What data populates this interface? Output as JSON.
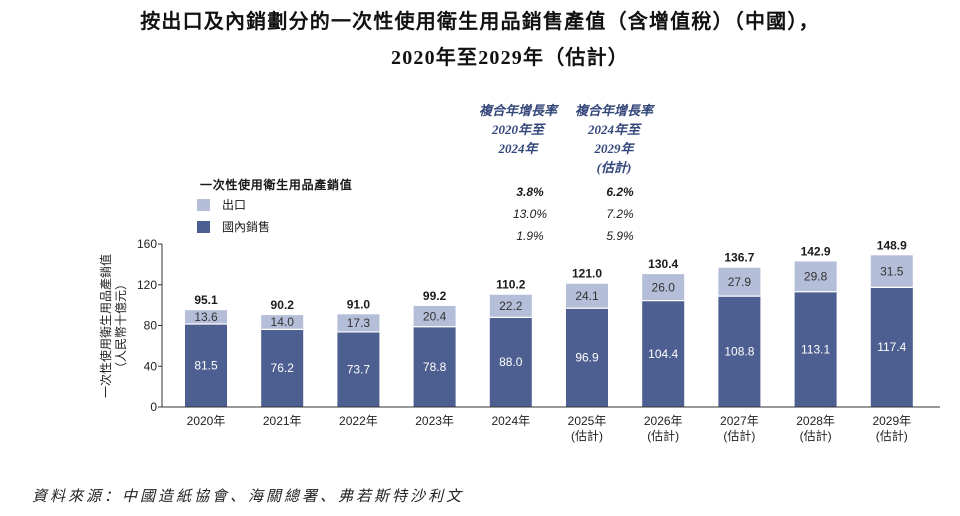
{
  "chart_data": {
    "type": "bar",
    "stacked": true,
    "title": [
      "按出口及內銷劃分的一次性使用衛生用品銷售產值（含增值稅）（中國），",
      "2020年至2029年（估計）"
    ],
    "legend_title": "一次性使用衛生用品產銷值",
    "legend_position": "top-left",
    "categories": [
      "2020年",
      "2021年",
      "2022年",
      "2023年",
      "2024年",
      "2025年",
      "2026年",
      "2027年",
      "2028年",
      "2029年"
    ],
    "category_notes": [
      "",
      "",
      "",
      "",
      "",
      "(估計)",
      "(估計)",
      "(估計)",
      "(估計)",
      "(估計)"
    ],
    "series": [
      {
        "name": "國內銷售",
        "color": "#4d5e90",
        "values": [
          81.5,
          76.2,
          73.7,
          78.8,
          88.0,
          96.9,
          104.4,
          108.8,
          113.1,
          117.4
        ]
      },
      {
        "name": "出口",
        "color": "#b4bed8",
        "values": [
          13.6,
          14.0,
          17.3,
          20.4,
          22.2,
          24.1,
          26.0,
          27.9,
          29.8,
          31.5
        ]
      }
    ],
    "totals": [
      95.1,
      90.2,
      91.0,
      99.2,
      110.2,
      121.0,
      130.4,
      136.7,
      142.9,
      148.9
    ],
    "ylabel": [
      "一次性使用衛生用品產銷值",
      "（人民幣十億元）"
    ],
    "ylim": [
      0,
      160
    ],
    "yticks": [
      0,
      40,
      80,
      120,
      160
    ],
    "grid": false
  },
  "cagr": {
    "headers": [
      [
        "複合年增長率",
        "2020年至",
        "2024年"
      ],
      [
        "複合年增長率",
        "2024年至",
        "2029年",
        "(估計)"
      ]
    ],
    "total": [
      "3.8%",
      "6.2%"
    ],
    "export": [
      "13.0%",
      "7.2%"
    ],
    "domestic": [
      "1.9%",
      "5.9%"
    ]
  },
  "source": "資料來源：中國造紙協會、海關總署、弗若斯特沙利文",
  "colors": {
    "cagr_header": "#34477a",
    "axis": "#333333"
  }
}
